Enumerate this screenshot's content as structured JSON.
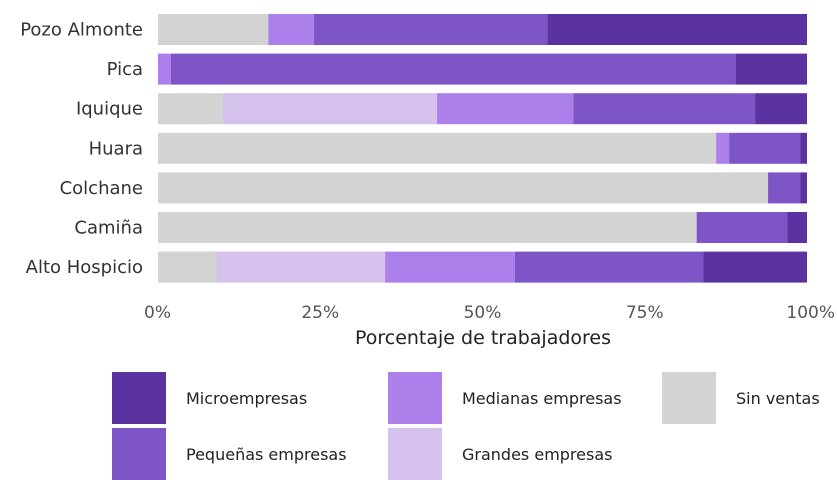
{
  "chart_data": {
    "type": "bar",
    "orientation": "horizontal",
    "stacked": true,
    "categories": [
      "Pozo Almonte",
      "Pica",
      "Iquique",
      "Huara",
      "Colchane",
      "Camiña",
      "Alto Hospicio"
    ],
    "series": [
      {
        "name": "Sin ventas",
        "color": "#d3d3d3",
        "values": [
          17,
          0,
          10,
          86,
          94,
          83,
          9
        ]
      },
      {
        "name": "Grandes empresas",
        "color": "#d4c1ec",
        "values": [
          0,
          0,
          33,
          0,
          0,
          0,
          26
        ]
      },
      {
        "name": "Medianas empresas",
        "color": "#ac7fea",
        "values": [
          7,
          2,
          21,
          2,
          0,
          0,
          20
        ]
      },
      {
        "name": "Pequeñas empresas",
        "color": "#7d55c7",
        "values": [
          36,
          87,
          28,
          11,
          5,
          14,
          29
        ]
      },
      {
        "name": "Microempresas",
        "color": "#5b33a0",
        "values": [
          40,
          11,
          8,
          1,
          1,
          3,
          16
        ]
      }
    ],
    "xlim": [
      0,
      100
    ],
    "xticks": [
      "0%",
      "25%",
      "50%",
      "75%",
      "100%"
    ],
    "xlabel": "Porcentaje de trabajadores",
    "ylabel": "",
    "title": "",
    "grid": false,
    "legend_position": "bottom"
  },
  "legend": {
    "items": [
      {
        "name": "Microempresas",
        "color": "#5b33a0"
      },
      {
        "name": "Medianas empresas",
        "color": "#ac7fea"
      },
      {
        "name": "Sin ventas",
        "color": "#d3d3d3"
      },
      {
        "name": "Pequeñas empresas",
        "color": "#7d55c7"
      },
      {
        "name": "Grandes empresas",
        "color": "#d4c1ec"
      }
    ]
  }
}
